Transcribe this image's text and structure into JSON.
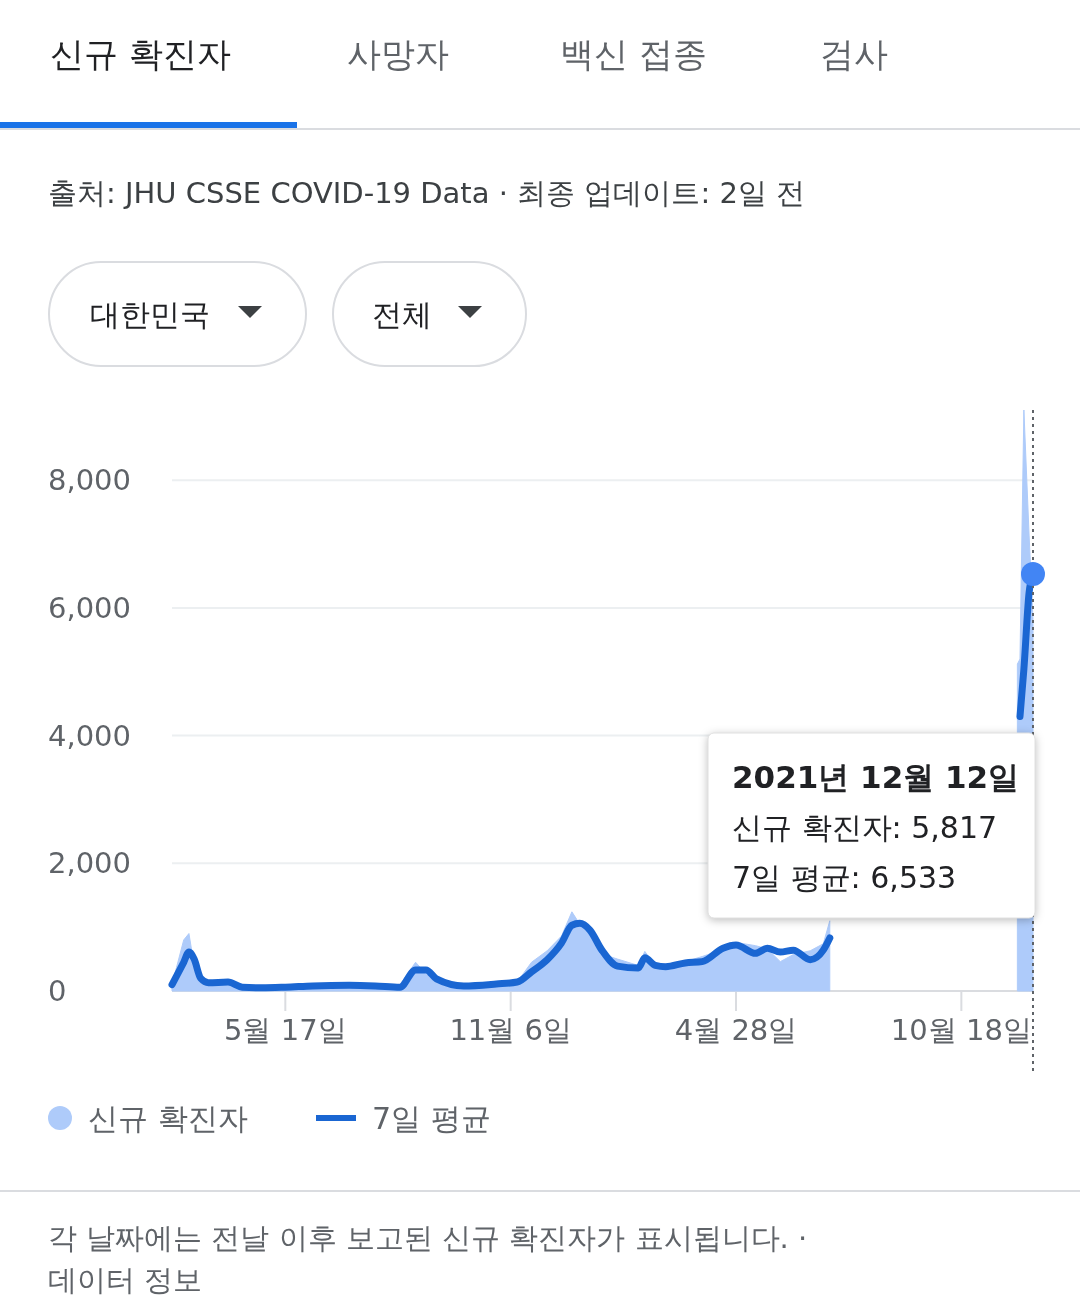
{
  "chart_data": {
    "type": "area",
    "x": [
      "2020-02-20",
      "2020-02-29",
      "2020-03-04",
      "2020-03-08",
      "2020-03-13",
      "2020-03-19",
      "2020-04-03",
      "2020-04-14",
      "2020-04-29",
      "2020-05-17",
      "2020-06-07",
      "2020-07-05",
      "2020-07-25",
      "2020-08-13",
      "2020-08-25",
      "2020-09-02",
      "2020-09-10",
      "2020-10-01",
      "2020-10-26",
      "2020-11-11",
      "2020-11-22",
      "2020-12-04",
      "2020-12-15",
      "2020-12-23",
      "2020-12-29",
      "2021-01-06",
      "2021-01-15",
      "2021-01-27",
      "2021-02-12",
      "2021-02-17",
      "2021-02-25",
      "2021-03-05",
      "2021-03-20",
      "2021-04-02",
      "2021-04-18",
      "2021-04-28",
      "2021-05-13",
      "2021-05-22",
      "2021-06-01",
      "2021-06-11",
      "2021-06-24",
      "2021-07-04",
      "2021-07-09",
      "2021-07-20",
      "2021-11-20",
      "2021-11-30",
      "2021-12-02",
      "2021-12-05",
      "2021-12-09",
      "2021-12-12"
    ],
    "series": [
      {
        "name": "신규 확진자",
        "color": "#aecbfa",
        "values": [
          100,
          800,
          900,
          400,
          110,
          150,
          90,
          30,
          10,
          20,
          60,
          60,
          110,
          100,
          450,
          270,
          150,
          110,
          120,
          140,
          450,
          630,
          860,
          1240,
          1050,
          870,
          580,
          500,
          400,
          620,
          390,
          420,
          460,
          540,
          650,
          760,
          710,
          660,
          460,
          570,
          630,
          740,
          1100,
          null,
          null,
          5120,
          5200,
          9100,
          7140,
          5817
        ]
      },
      {
        "name": "7일 평균",
        "type": "line",
        "color": "#1a66d2",
        "values": [
          100,
          450,
          610,
          500,
          200,
          130,
          140,
          60,
          50,
          60,
          80,
          90,
          80,
          60,
          330,
          330,
          190,
          80,
          110,
          140,
          300,
          490,
          750,
          1030,
          1060,
          950,
          640,
          390,
          360,
          520,
          400,
          380,
          440,
          460,
          670,
          720,
          590,
          670,
          610,
          640,
          490,
          640,
          830,
          null,
          null,
          null,
          4300,
          5040,
          6240,
          6533
        ]
      }
    ],
    "xlim": [
      "2020-02-20",
      "2021-12-12"
    ],
    "xticks": [
      {
        "value": "2020-05-17",
        "label": "5월 17일"
      },
      {
        "value": "2020-11-06",
        "label": "11월 6일"
      },
      {
        "value": "2021-04-28",
        "label": "4월 28일"
      },
      {
        "value": "2021-10-18",
        "label": "10월 18일"
      }
    ],
    "ylim": [
      0,
      9100
    ],
    "yticks": [
      {
        "value": 0,
        "label": "0"
      },
      {
        "value": 2000,
        "label": "2,000"
      },
      {
        "value": 4000,
        "label": "4,000"
      },
      {
        "value": 6000,
        "label": "6,000"
      },
      {
        "value": 8000,
        "label": "8,000"
      }
    ],
    "grid": "y",
    "legend": "bottom left",
    "ref_lines": [
      {
        "axis": "x",
        "value": "2021-12-12",
        "line_style": "dotted",
        "color": "#5f6368"
      }
    ],
    "annotations": [
      "신규 확진자",
      "사망자",
      "백신 접종",
      "검사",
      "출처: JHU CSSE COVID-19 Data · 최종 업데이트: 2일 전",
      "대한민국",
      "전체",
      "각 날짜에는 전날 이후 보고된 신규 확진자가 표시됩니다. ·",
      "데이터 정보",
      "2021년 12월 12일",
      "신규 확진자: 5,817",
      "7일 평균: 6,533"
    ]
  }
}
